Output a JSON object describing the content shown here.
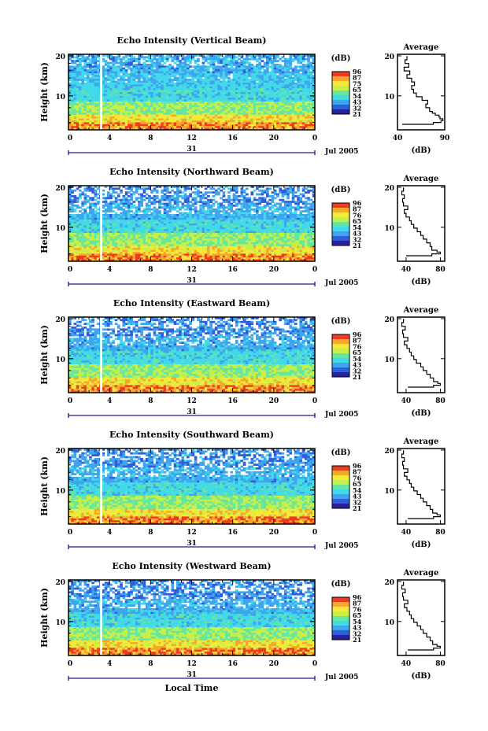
{
  "chart_data": [
    {
      "type": "heatmap",
      "title": "Echo Intensity (Vertical Beam)",
      "ylabel": "Height (km)",
      "y_ticks": [
        "20",
        "10"
      ],
      "x_ticks": [
        "0",
        "4",
        "8",
        "12",
        "16",
        "20",
        "0"
      ],
      "date_label": "31",
      "month_label": "Jul 2005",
      "colorbar_unit": "(dB)",
      "colorbar_ticks": [
        "96",
        "87",
        "75",
        "65",
        "54",
        "43",
        "32",
        "21"
      ],
      "profile_title": "Average",
      "profile_xlabel": "(dB)",
      "profile_x_ticks": [
        "40",
        "90"
      ],
      "profile_y_ticks": [
        "20",
        "10"
      ],
      "profile_xlim": [
        40,
        90
      ],
      "profile": {
        "height_km": [
          1.5,
          2.0,
          2.5,
          3.0,
          3.5,
          4.0,
          4.5,
          5.0,
          6.0,
          7.0,
          8.0,
          9.0,
          10.0,
          11.0,
          12.0,
          13.0,
          14.0,
          15.0,
          16.0,
          17.0,
          18.0,
          19.0,
          20.0
        ],
        "avg_db": [
          45,
          78,
          86,
          88,
          85,
          84,
          80,
          77,
          74,
          70,
          72,
          66,
          60,
          57,
          55,
          58,
          55,
          50,
          53,
          47,
          52,
          48,
          50
        ]
      }
    },
    {
      "type": "heatmap",
      "title": "Echo Intensity (Northward Beam)",
      "ylabel": "Height (km)",
      "y_ticks": [
        "20",
        "10"
      ],
      "x_ticks": [
        "0",
        "4",
        "8",
        "12",
        "16",
        "20",
        "0"
      ],
      "date_label": "31",
      "month_label": "Jul 2005",
      "colorbar_unit": "(dB)",
      "colorbar_ticks": [
        "96",
        "87",
        "76",
        "65",
        "54",
        "43",
        "32",
        "21"
      ],
      "profile_title": "Average",
      "profile_xlabel": "(dB)",
      "profile_x_ticks": [
        "40",
        "80"
      ],
      "profile_y_ticks": [
        "20",
        "10"
      ],
      "profile_xlim": [
        30,
        85
      ],
      "profile": {
        "height_km": [
          1.5,
          2.0,
          2.5,
          3.0,
          4.0,
          5.0,
          6.0,
          7.0,
          8.0,
          9.0,
          10.0,
          11.0,
          12.0,
          13.0,
          14.0,
          15.0,
          16.0,
          17.0,
          18.0,
          19.0,
          20.0
        ],
        "avg_db": [
          40,
          70,
          80,
          76,
          70,
          68,
          64,
          60,
          57,
          53,
          49,
          46,
          44,
          40,
          38,
          42,
          37,
          36,
          38,
          35,
          37
        ]
      }
    },
    {
      "type": "heatmap",
      "title": "Echo Intensity (Eastward Beam)",
      "ylabel": "Height (km)",
      "y_ticks": [
        "20",
        "10"
      ],
      "x_ticks": [
        "0",
        "4",
        "8",
        "12",
        "16",
        "20",
        "0"
      ],
      "date_label": "31",
      "month_label": "Jul 2005",
      "colorbar_unit": "(dB)",
      "colorbar_ticks": [
        "96",
        "87",
        "76",
        "65",
        "54",
        "43",
        "32",
        "21"
      ],
      "profile_title": "Average",
      "profile_xlabel": "(dB)",
      "profile_x_ticks": [
        "40",
        "80"
      ],
      "profile_y_ticks": [
        "20",
        "10"
      ],
      "profile_xlim": [
        30,
        85
      ],
      "profile": {
        "height_km": [
          1.5,
          2.0,
          2.5,
          3.0,
          4.0,
          5.0,
          6.0,
          7.0,
          8.0,
          9.0,
          10.0,
          11.0,
          12.0,
          13.0,
          14.0,
          15.0,
          16.0,
          17.0,
          18.0,
          19.0,
          20.0
        ],
        "avg_db": [
          42,
          72,
          80,
          77,
          72,
          68,
          64,
          60,
          57,
          52,
          49,
          46,
          44,
          41,
          38,
          42,
          37,
          36,
          39,
          35,
          37
        ]
      }
    },
    {
      "type": "heatmap",
      "title": "Echo Intensity (Southward Beam)",
      "ylabel": "Height (km)",
      "y_ticks": [
        "20",
        "10"
      ],
      "x_ticks": [
        "0",
        "4",
        "8",
        "12",
        "16",
        "20",
        "0"
      ],
      "date_label": "31",
      "month_label": "Jul 2005",
      "colorbar_unit": "(dB)",
      "colorbar_ticks": [
        "96",
        "87",
        "76",
        "65",
        "54",
        "43",
        "32",
        "21"
      ],
      "profile_title": "Average",
      "profile_xlabel": "(dB)",
      "profile_x_ticks": [
        "40",
        "80"
      ],
      "profile_y_ticks": [
        "20",
        "10"
      ],
      "profile_xlim": [
        30,
        85
      ],
      "profile": {
        "height_km": [
          1.5,
          2.0,
          2.5,
          3.0,
          4.0,
          5.0,
          6.0,
          7.0,
          8.0,
          9.0,
          10.0,
          11.0,
          12.0,
          13.0,
          14.0,
          15.0,
          16.0,
          17.0,
          18.0,
          19.0,
          20.0
        ],
        "avg_db": [
          42,
          72,
          80,
          76,
          71,
          68,
          64,
          60,
          57,
          53,
          49,
          46,
          44,
          41,
          38,
          42,
          37,
          36,
          38,
          35,
          37
        ]
      }
    },
    {
      "type": "heatmap",
      "title": "Echo Intensity (Westward Beam)",
      "ylabel": "Height (km)",
      "y_ticks": [
        "20",
        "10"
      ],
      "x_ticks": [
        "0",
        "4",
        "8",
        "12",
        "16",
        "20",
        "0"
      ],
      "date_label": "31",
      "month_label": "Jul 2005",
      "xlabel": "Local Time",
      "colorbar_unit": "(dB)",
      "colorbar_ticks": [
        "96",
        "87",
        "76",
        "65",
        "54",
        "43",
        "32",
        "21"
      ],
      "profile_title": "Average",
      "profile_xlabel": "(dB)",
      "profile_x_ticks": [
        "40",
        "80"
      ],
      "profile_y_ticks": [
        "20",
        "10"
      ],
      "profile_xlim": [
        30,
        85
      ],
      "profile": {
        "height_km": [
          1.5,
          2.0,
          2.5,
          3.0,
          4.0,
          5.0,
          6.0,
          7.0,
          8.0,
          9.0,
          10.0,
          11.0,
          12.0,
          13.0,
          14.0,
          15.0,
          16.0,
          17.0,
          18.0,
          19.0,
          20.0
        ],
        "avg_db": [
          42,
          72,
          80,
          76,
          71,
          68,
          64,
          60,
          57,
          53,
          49,
          46,
          44,
          41,
          38,
          42,
          37,
          36,
          39,
          35,
          37
        ]
      }
    }
  ],
  "colors": [
    "#2a1f9e",
    "#2f5fd8",
    "#3fa5ef",
    "#42d9e8",
    "#66e6a0",
    "#c6ef4a",
    "#f5e93a",
    "#f6a72c",
    "#ee3b24"
  ]
}
